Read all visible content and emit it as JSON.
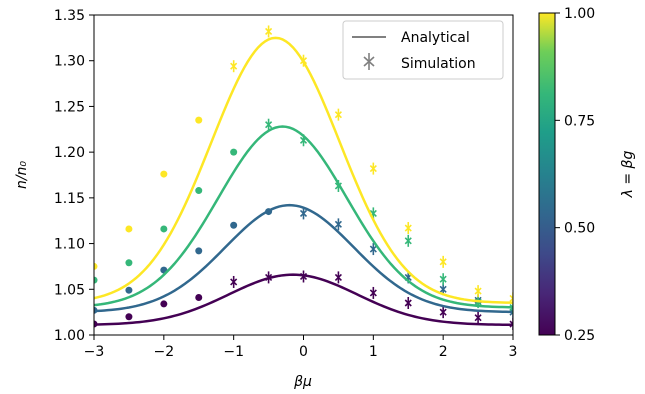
{
  "chart_data": {
    "type": "line",
    "xlabel": "βμ",
    "ylabel": "n/n₀",
    "xlim": [
      -3,
      3
    ],
    "ylim": [
      1.0,
      1.35
    ],
    "xticks": [
      "−3",
      "−2",
      "−1",
      "0",
      "1",
      "2",
      "3"
    ],
    "yticks": [
      "1.00",
      "1.05",
      "1.10",
      "1.15",
      "1.20",
      "1.25",
      "1.30",
      "1.35"
    ],
    "legend": {
      "position": "top-right",
      "entries": [
        {
          "label": "Analytical",
          "marker": "line"
        },
        {
          "label": "Simulation",
          "marker": "errorbar-x"
        }
      ]
    },
    "colorbar": {
      "label": "λ = βg",
      "range": [
        0.25,
        1.0
      ],
      "ticks": [
        "0.25",
        "0.50",
        "0.75",
        "1.00"
      ],
      "colormap": "viridis"
    },
    "series": [
      {
        "lambda": 0.25,
        "color": "#440154",
        "analytic_peak": 1.066,
        "analytic_center": -0.15,
        "analytic_width": 1.3,
        "analytic_end": 1.011,
        "points_dot": [
          [
            -3.0,
            1.012
          ],
          [
            -2.5,
            1.02
          ],
          [
            -2.0,
            1.034
          ],
          [
            -1.5,
            1.041
          ]
        ],
        "points_cross": [
          [
            -1.0,
            1.058
          ],
          [
            -0.5,
            1.063
          ],
          [
            0.0,
            1.064
          ],
          [
            0.5,
            1.063
          ],
          [
            1.0,
            1.046
          ],
          [
            1.5,
            1.035
          ],
          [
            2.0,
            1.025
          ],
          [
            2.5,
            1.019
          ],
          [
            3.0,
            1.012
          ]
        ]
      },
      {
        "lambda": 0.5,
        "color": "#31688e",
        "analytic_peak": 1.142,
        "analytic_center": -0.2,
        "analytic_width": 1.3,
        "analytic_end": 1.025,
        "points_dot": [
          [
            -3.0,
            1.027
          ],
          [
            -2.5,
            1.049
          ],
          [
            -2.0,
            1.071
          ],
          [
            -1.5,
            1.092
          ],
          [
            -1.0,
            1.12
          ],
          [
            -0.5,
            1.135
          ]
        ],
        "points_cross": [
          [
            0.0,
            1.133
          ],
          [
            0.5,
            1.121
          ],
          [
            1.0,
            1.094
          ],
          [
            1.5,
            1.063
          ],
          [
            2.0,
            1.05
          ],
          [
            2.5,
            1.038
          ],
          [
            3.0,
            1.025
          ]
        ]
      },
      {
        "lambda": 0.75,
        "color": "#35b779",
        "analytic_peak": 1.228,
        "analytic_center": -0.3,
        "analytic_width": 1.3,
        "analytic_end": 1.03,
        "points_dot": [
          [
            -3.0,
            1.06
          ],
          [
            -2.5,
            1.079
          ],
          [
            -2.0,
            1.116
          ],
          [
            -1.5,
            1.158
          ],
          [
            -1.0,
            1.2
          ]
        ],
        "points_cross": [
          [
            -0.5,
            1.23
          ],
          [
            0.0,
            1.213
          ],
          [
            0.5,
            1.163
          ],
          [
            1.0,
            1.133
          ],
          [
            1.5,
            1.103
          ],
          [
            2.0,
            1.061
          ],
          [
            2.5,
            1.036
          ],
          [
            3.0,
            1.03
          ]
        ]
      },
      {
        "lambda": 1.0,
        "color": "#fde725",
        "analytic_peak": 1.325,
        "analytic_center": -0.4,
        "analytic_width": 1.3,
        "analytic_end": 1.035,
        "points_dot": [
          [
            -3.0,
            1.075
          ],
          [
            -2.5,
            1.116
          ],
          [
            -2.0,
            1.176
          ],
          [
            -1.5,
            1.235
          ]
        ],
        "points_cross": [
          [
            -1.0,
            1.294
          ],
          [
            -0.5,
            1.332
          ],
          [
            0.0,
            1.3
          ],
          [
            0.5,
            1.241
          ],
          [
            1.0,
            1.182
          ],
          [
            1.5,
            1.117
          ],
          [
            2.0,
            1.08
          ],
          [
            2.5,
            1.048
          ],
          [
            3.0,
            1.04
          ]
        ]
      }
    ]
  }
}
